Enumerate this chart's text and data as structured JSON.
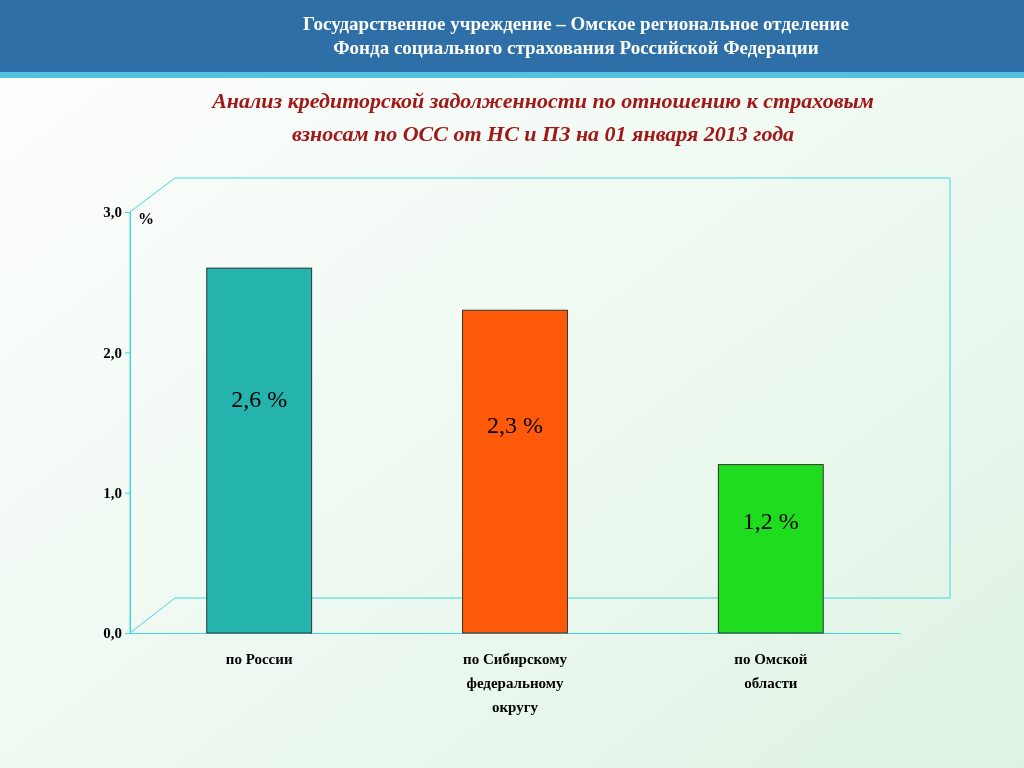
{
  "chart_data": {
    "type": "bar",
    "title": "Государственное учреждение – Омское региональное отделение Фонда социального страхования Российской Федерации",
    "subtitle": "Анализ кредиторской задолженности по отношению к страховым взносам по ОСС от НС и ПЗ на 01 января 2013 года",
    "ylabel": "%",
    "categories": [
      "по России",
      "по Сибирскому федеральному округу",
      "по Омской области"
    ],
    "values": [
      2.6,
      2.3,
      1.2
    ],
    "colors": [
      "#25b3ad",
      "#ff5a0a",
      "#1fdc1f"
    ],
    "value_labels": [
      "2,6 %",
      "2,3 %",
      "1,2 %"
    ],
    "ylim": [
      0,
      3
    ],
    "yticks": [
      {
        "value": 0,
        "label": "0,0"
      },
      {
        "value": 1,
        "label": "1,0"
      },
      {
        "value": 2,
        "label": "2,0"
      },
      {
        "value": 3,
        "label": "3,0"
      }
    ],
    "grid": false
  }
}
